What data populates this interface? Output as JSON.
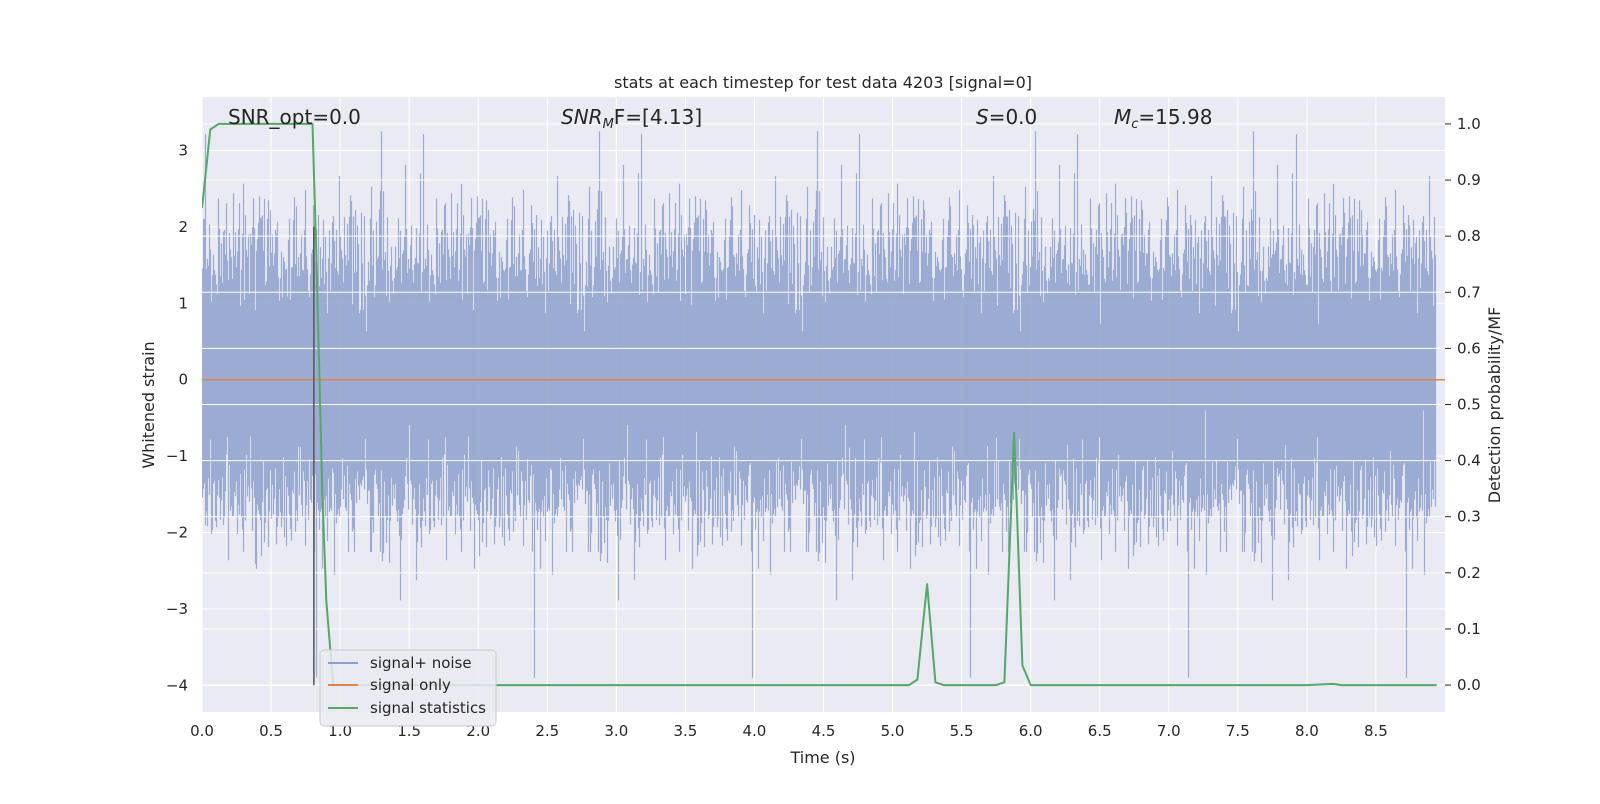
{
  "chart_data": {
    "type": "line",
    "title": "stats at each timestep for test data 4203 [signal=0]",
    "xlabel": "Time (s)",
    "ylabel_left": "Whitened strain",
    "ylabel_right": "Detection probability/MF",
    "xlim": [
      0,
      9.0
    ],
    "ylim_left": [
      -4.35,
      3.7
    ],
    "ylim_right": [
      -0.048,
      1.048
    ],
    "x_ticks": [
      "0.0",
      "0.5",
      "1.0",
      "1.5",
      "2.0",
      "2.5",
      "3.0",
      "3.5",
      "4.0",
      "4.5",
      "5.0",
      "5.5",
      "6.0",
      "6.5",
      "7.0",
      "7.5",
      "8.0",
      "8.5"
    ],
    "y_ticks_left": [
      "3",
      "2",
      "1",
      "0",
      "−1",
      "−2",
      "−3",
      "−4"
    ],
    "y_ticks_right": [
      "1.0",
      "0.9",
      "0.8",
      "0.7",
      "0.6",
      "0.5",
      "0.4",
      "0.3",
      "0.2",
      "0.1",
      "0.0"
    ],
    "annotations": {
      "snr_opt": "SNR_opt=0.0",
      "snr_mf_main": "SNR",
      "snr_mf_sub": "M",
      "snr_mf_rest": "F=[4.13]",
      "s_italic": "S",
      "s_rest": "=0.0",
      "mc_main": "M",
      "mc_sub": "c",
      "mc_rest": "=15.98"
    },
    "legend": {
      "placement": "lower-left",
      "entries": [
        "signal+ noise",
        "signal only",
        "signal statistics"
      ]
    },
    "colors": {
      "noise": "#8da0cb",
      "signal": "#dd8452",
      "stats": "#55a868",
      "background": "#eaeaf2",
      "grid": "#ffffff",
      "marker_line": "#555555"
    },
    "grid": true,
    "vertical_marker_x": 0.81,
    "series": [
      {
        "name": "signal+ noise",
        "axis": "left",
        "kind": "noise-envelope",
        "sample_rate": 4096,
        "approx_std": 0.85,
        "range": [
          -3.9,
          3.4
        ]
      },
      {
        "name": "signal only",
        "axis": "left",
        "x": [
          0,
          9.0
        ],
        "y": [
          0,
          0
        ]
      },
      {
        "name": "signal statistics",
        "axis": "right",
        "x": [
          0,
          0.06,
          0.12,
          0.25,
          0.5,
          0.75,
          0.8,
          0.83,
          0.87,
          0.9,
          0.95,
          1.0,
          1.5,
          2.0,
          2.5,
          3.0,
          3.5,
          4.0,
          4.5,
          5.0,
          5.12,
          5.18,
          5.25,
          5.31,
          5.37,
          5.5,
          5.75,
          5.81,
          5.88,
          5.94,
          6.0,
          6.25,
          6.5,
          7.0,
          7.5,
          8.0,
          8.19,
          8.25,
          8.5,
          8.75,
          8.94
        ],
        "y": [
          0.85,
          0.99,
          1.0,
          1.0,
          1.0,
          1.0,
          1.0,
          0.75,
          0.35,
          0.15,
          0.0,
          0.0,
          0.0,
          0.0,
          0.0,
          0.0,
          0.0,
          0.0,
          0.0,
          0.0,
          0.0,
          0.01,
          0.18,
          0.005,
          0.0,
          0.0,
          0.0,
          0.005,
          0.45,
          0.035,
          0.0,
          0.0,
          0.0,
          0.0,
          0.0,
          0.0,
          0.002,
          0.0,
          0.0,
          0.0,
          0.0
        ]
      }
    ]
  }
}
